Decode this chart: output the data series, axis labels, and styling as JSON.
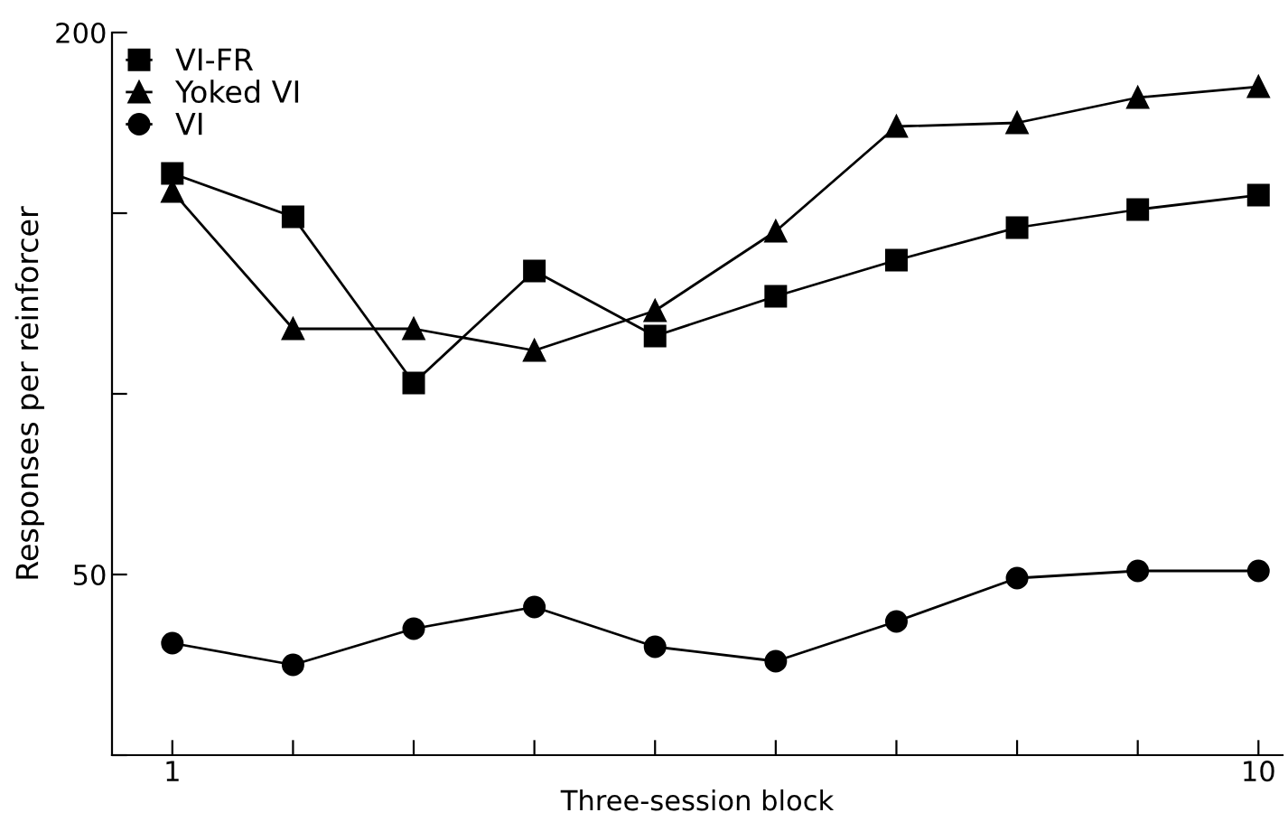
{
  "chart_data": {
    "type": "line",
    "xlabel": "Three-session block",
    "ylabel": "Responses per reinforcer",
    "x": [
      1,
      2,
      3,
      4,
      5,
      6,
      7,
      8,
      9,
      10
    ],
    "series": [
      {
        "name": "VI-FR",
        "color": "#000000",
        "marker": "square",
        "values": [
          161,
          149,
          103,
          134,
          116,
          127,
          137,
          146,
          151,
          155
        ]
      },
      {
        "name": "Yoked VI",
        "color": "#000000",
        "marker": "triangle",
        "values": [
          156,
          118,
          118,
          112,
          123,
          145,
          174,
          175,
          182,
          185
        ]
      },
      {
        "name": "VI",
        "color": "#000000",
        "marker": "circle",
        "values": [
          31,
          25,
          35,
          41,
          30,
          26,
          37,
          49,
          51,
          51
        ]
      }
    ],
    "xlim": [
      0.5,
      10.2
    ],
    "ylim": [
      0,
      200
    ],
    "xticks": [
      1,
      {
        "value": 2,
        "label": null
      },
      {
        "value": 3,
        "label": null
      },
      {
        "value": 4,
        "label": null
      },
      {
        "value": 5,
        "label": null
      },
      {
        "value": 6,
        "label": null
      },
      {
        "value": 7,
        "label": null
      },
      {
        "value": 8,
        "label": null
      },
      {
        "value": 9,
        "label": null
      },
      10
    ],
    "yticks": [
      {
        "value": 0,
        "label": null
      },
      50,
      {
        "value": 100,
        "label": null
      },
      {
        "value": 150,
        "label": null
      },
      200
    ],
    "grid": false,
    "legend": "top left",
    "line_style": "solid"
  }
}
